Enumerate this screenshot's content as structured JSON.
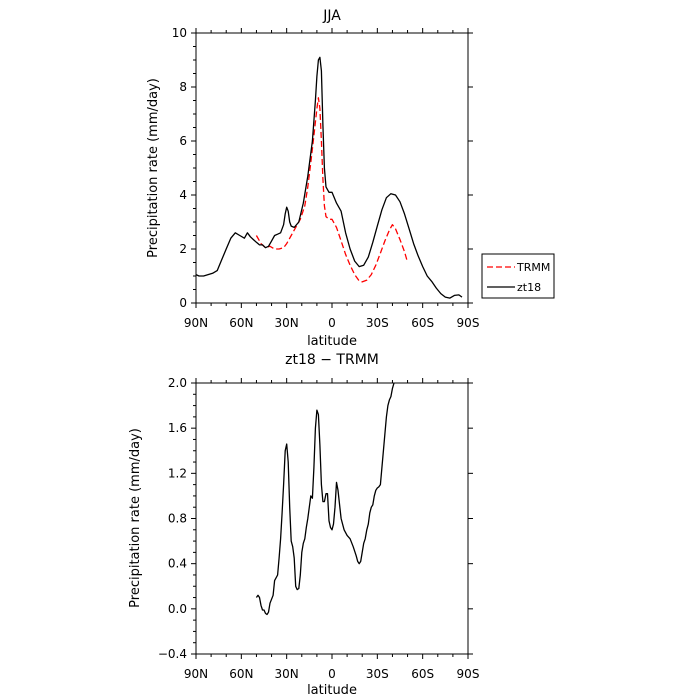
{
  "chart_data": [
    {
      "type": "line",
      "title": "JJA",
      "xlabel": "latitude",
      "ylabel": "Precipitation rate (mm/day)",
      "xlim": [
        90,
        -90
      ],
      "ylim": [
        0,
        10
      ],
      "x_ticks": [
        90,
        60,
        30,
        0,
        -30,
        -60,
        -90
      ],
      "x_tick_labels": [
        "90N",
        "60N",
        "30N",
        "0",
        "30S",
        "60S",
        "90S"
      ],
      "y_ticks": [
        0,
        2,
        4,
        6,
        8,
        10
      ],
      "y_tick_labels": [
        "0",
        "2",
        "4",
        "6",
        "8",
        "10"
      ],
      "grid": false,
      "legend": {
        "position": "right",
        "entries": [
          "TRMM",
          "zt18"
        ]
      },
      "series": [
        {
          "name": "TRMM",
          "color": "#ff0000",
          "style": "dashed",
          "points": [
            [
              50,
              2.5
            ],
            [
              47,
              2.2
            ],
            [
              44,
              2.05
            ],
            [
              41,
              2.1
            ],
            [
              38,
              2.0
            ],
            [
              35,
              2.0
            ],
            [
              32,
              2.05
            ],
            [
              30,
              2.2
            ],
            [
              27,
              2.5
            ],
            [
              24,
              2.8
            ],
            [
              21,
              3.1
            ],
            [
              18,
              3.6
            ],
            [
              16,
              4.3
            ],
            [
              14,
              5.2
            ],
            [
              12,
              6.2
            ],
            [
              10,
              7.2
            ],
            [
              9,
              7.6
            ],
            [
              8,
              7.2
            ],
            [
              7,
              6.0
            ],
            [
              6,
              4.6
            ],
            [
              5,
              3.6
            ],
            [
              4,
              3.2
            ],
            [
              2,
              3.1
            ],
            [
              0,
              3.1
            ],
            [
              -3,
              2.8
            ],
            [
              -6,
              2.3
            ],
            [
              -9,
              1.8
            ],
            [
              -12,
              1.4
            ],
            [
              -15,
              1.05
            ],
            [
              -18,
              0.82
            ],
            [
              -20,
              0.78
            ],
            [
              -23,
              0.85
            ],
            [
              -26,
              1.05
            ],
            [
              -29,
              1.4
            ],
            [
              -32,
              1.85
            ],
            [
              -35,
              2.3
            ],
            [
              -38,
              2.7
            ],
            [
              -40,
              2.9
            ],
            [
              -42,
              2.75
            ],
            [
              -45,
              2.35
            ],
            [
              -48,
              1.9
            ],
            [
              -50,
              1.5
            ]
          ]
        },
        {
          "name": "zt18",
          "color": "#000000",
          "style": "solid",
          "points": [
            [
              90,
              1.05
            ],
            [
              88,
              1.0
            ],
            [
              85,
              1.0
            ],
            [
              82,
              1.05
            ],
            [
              79,
              1.1
            ],
            [
              76,
              1.2
            ],
            [
              73,
              1.6
            ],
            [
              70,
              2.0
            ],
            [
              67,
              2.4
            ],
            [
              64,
              2.6
            ],
            [
              61,
              2.5
            ],
            [
              58,
              2.4
            ],
            [
              56,
              2.6
            ],
            [
              54,
              2.45
            ],
            [
              52,
              2.35
            ],
            [
              50,
              2.25
            ],
            [
              48,
              2.15
            ],
            [
              46,
              2.15
            ],
            [
              44,
              2.05
            ],
            [
              42,
              2.1
            ],
            [
              40,
              2.3
            ],
            [
              38,
              2.5
            ],
            [
              36,
              2.55
            ],
            [
              34,
              2.6
            ],
            [
              32,
              2.9
            ],
            [
              31,
              3.3
            ],
            [
              30,
              3.55
            ],
            [
              29,
              3.4
            ],
            [
              28,
              3.0
            ],
            [
              27,
              2.85
            ],
            [
              25,
              2.8
            ],
            [
              22,
              3.0
            ],
            [
              19,
              3.7
            ],
            [
              16,
              4.7
            ],
            [
              13,
              6.0
            ],
            [
              11,
              7.5
            ],
            [
              10,
              8.4
            ],
            [
              9,
              9.0
            ],
            [
              8,
              9.1
            ],
            [
              7,
              8.6
            ],
            [
              6,
              6.6
            ],
            [
              5,
              5.0
            ],
            [
              4,
              4.3
            ],
            [
              2,
              4.1
            ],
            [
              0,
              4.1
            ],
            [
              -3,
              3.7
            ],
            [
              -6,
              3.4
            ],
            [
              -9,
              2.6
            ],
            [
              -12,
              2.0
            ],
            [
              -15,
              1.55
            ],
            [
              -18,
              1.35
            ],
            [
              -21,
              1.4
            ],
            [
              -24,
              1.7
            ],
            [
              -27,
              2.25
            ],
            [
              -30,
              2.85
            ],
            [
              -33,
              3.45
            ],
            [
              -36,
              3.9
            ],
            [
              -39,
              4.05
            ],
            [
              -42,
              4.0
            ],
            [
              -45,
              3.75
            ],
            [
              -48,
              3.3
            ],
            [
              -51,
              2.75
            ],
            [
              -54,
              2.2
            ],
            [
              -57,
              1.75
            ],
            [
              -60,
              1.35
            ],
            [
              -63,
              1.0
            ],
            [
              -66,
              0.8
            ],
            [
              -69,
              0.55
            ],
            [
              -72,
              0.35
            ],
            [
              -75,
              0.22
            ],
            [
              -78,
              0.18
            ],
            [
              -81,
              0.28
            ],
            [
              -84,
              0.3
            ],
            [
              -86,
              0.22
            ]
          ]
        }
      ]
    },
    {
      "type": "line",
      "title": "zt18 − TRMM",
      "xlabel": "latitude",
      "ylabel": "Precipitation rate (mm/day)",
      "xlim": [
        90,
        -90
      ],
      "ylim": [
        -0.4,
        2.0
      ],
      "x_ticks": [
        90,
        60,
        30,
        0,
        -30,
        -60,
        -90
      ],
      "x_tick_labels": [
        "90N",
        "60N",
        "30N",
        "0",
        "30S",
        "60S",
        "90S"
      ],
      "y_ticks": [
        -0.4,
        0,
        0.4,
        0.8,
        1.2,
        1.6,
        2.0
      ],
      "y_tick_labels": [
        "−0.4",
        "0.0",
        "0.4",
        "0.8",
        "1.2",
        "1.6",
        "2.0"
      ],
      "grid": false,
      "series": [
        {
          "color": "#000000",
          "style": "solid",
          "points": [
            [
              50,
              0.1
            ],
            [
              49,
              0.12
            ],
            [
              48,
              0.1
            ],
            [
              47,
              0.03
            ],
            [
              46,
              -0.01
            ],
            [
              45,
              -0.01
            ],
            [
              44,
              -0.04
            ],
            [
              43,
              -0.05
            ],
            [
              42,
              -0.03
            ],
            [
              41,
              0.05
            ],
            [
              39,
              0.12
            ],
            [
              38,
              0.25
            ],
            [
              36,
              0.3
            ],
            [
              35,
              0.45
            ],
            [
              34,
              0.62
            ],
            [
              33,
              0.85
            ],
            [
              32,
              1.1
            ],
            [
              31,
              1.4
            ],
            [
              30,
              1.46
            ],
            [
              29,
              1.3
            ],
            [
              28,
              0.9
            ],
            [
              27,
              0.6
            ],
            [
              26,
              0.55
            ],
            [
              25,
              0.45
            ],
            [
              24,
              0.2
            ],
            [
              23,
              0.17
            ],
            [
              22,
              0.18
            ],
            [
              21,
              0.3
            ],
            [
              20,
              0.5
            ],
            [
              19,
              0.58
            ],
            [
              18,
              0.62
            ],
            [
              17,
              0.72
            ],
            [
              16,
              0.8
            ],
            [
              15,
              0.9
            ],
            [
              14,
              1.0
            ],
            [
              13,
              0.98
            ],
            [
              12,
              1.25
            ],
            [
              11,
              1.6
            ],
            [
              10,
              1.76
            ],
            [
              9,
              1.72
            ],
            [
              8,
              1.45
            ],
            [
              7,
              1.1
            ],
            [
              6,
              0.95
            ],
            [
              5,
              0.95
            ],
            [
              4,
              1.02
            ],
            [
              3,
              1.02
            ],
            [
              2,
              0.78
            ],
            [
              1,
              0.72
            ],
            [
              0,
              0.7
            ],
            [
              -1,
              0.75
            ],
            [
              -2,
              0.9
            ],
            [
              -3,
              1.12
            ],
            [
              -4,
              1.05
            ],
            [
              -5,
              0.92
            ],
            [
              -6,
              0.8
            ],
            [
              -8,
              0.7
            ],
            [
              -10,
              0.65
            ],
            [
              -12,
              0.62
            ],
            [
              -14,
              0.55
            ],
            [
              -16,
              0.47
            ],
            [
              -17,
              0.42
            ],
            [
              -18,
              0.4
            ],
            [
              -19,
              0.42
            ],
            [
              -20,
              0.5
            ],
            [
              -21,
              0.58
            ],
            [
              -22,
              0.62
            ],
            [
              -23,
              0.7
            ],
            [
              -24,
              0.75
            ],
            [
              -25,
              0.85
            ],
            [
              -26,
              0.9
            ],
            [
              -27,
              0.92
            ],
            [
              -28,
              1.0
            ],
            [
              -29,
              1.05
            ],
            [
              -30,
              1.07
            ],
            [
              -31,
              1.08
            ],
            [
              -32,
              1.1
            ],
            [
              -33,
              1.25
            ],
            [
              -34,
              1.4
            ],
            [
              -35,
              1.55
            ],
            [
              -36,
              1.7
            ],
            [
              -37,
              1.8
            ],
            [
              -38,
              1.85
            ],
            [
              -39,
              1.88
            ],
            [
              -40,
              1.95
            ],
            [
              -41,
              2.0
            ]
          ]
        }
      ]
    }
  ]
}
